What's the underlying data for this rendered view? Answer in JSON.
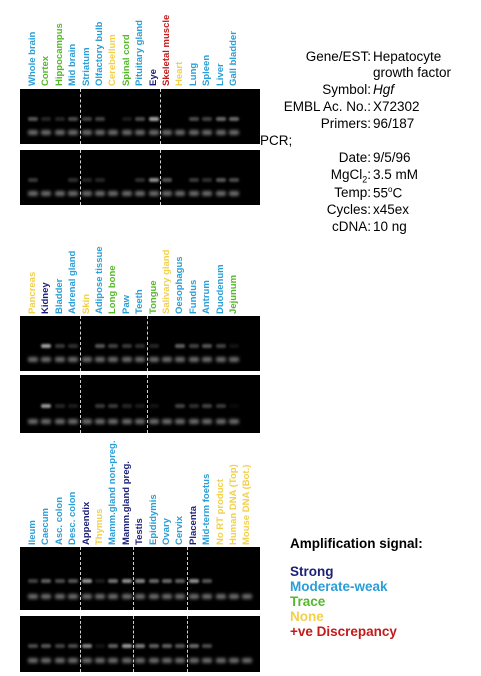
{
  "colors": {
    "strong": "#1c1f78",
    "moderate": "#2a9ed6",
    "trace": "#55b82b",
    "none": "#f2d04a",
    "discrepancy": "#c21b1b"
  },
  "panels": [
    {
      "lanes": [
        {
          "label": "Whole brain",
          "signal": "moderate",
          "b1": 0.45,
          "b2": 0.3
        },
        {
          "label": "Cortex",
          "signal": "trace",
          "b1": 0.2,
          "b2": 0
        },
        {
          "label": "Hippocampus",
          "signal": "trace",
          "b1": 0.2,
          "b2": 0
        },
        {
          "label": "Mid brain",
          "signal": "moderate",
          "b1": 0.4,
          "b2": 0.25
        },
        {
          "label": "Striatum",
          "signal": "moderate",
          "b1": 0.35,
          "b2": 0.2
        },
        {
          "label": "Olfactory bulb",
          "signal": "moderate",
          "b1": 0.35,
          "b2": 0.2
        },
        {
          "label": "Cerebellum",
          "signal": "none",
          "b1": 0,
          "b2": 0
        },
        {
          "label": "Spinal cord",
          "signal": "trace",
          "b1": 0.15,
          "b2": 0
        },
        {
          "label": "Pituitary gland",
          "signal": "moderate",
          "b1": 0.4,
          "b2": 0.25
        },
        {
          "label": "Eye",
          "signal": "strong",
          "b1": 0.85,
          "b2": 0.75
        },
        {
          "label": "Skeletal muscle",
          "signal": "discrepancy",
          "b1": 0,
          "b2": 0.45
        },
        {
          "label": "Heart",
          "signal": "none",
          "b1": 0,
          "b2": 0
        },
        {
          "label": "Lung",
          "signal": "moderate",
          "b1": 0.4,
          "b2": 0.3
        },
        {
          "label": "Spleen",
          "signal": "moderate",
          "b1": 0.35,
          "b2": 0.25
        },
        {
          "label": "Liver",
          "signal": "moderate",
          "b1": 0.55,
          "b2": 0.45
        },
        {
          "label": "Gall bladder",
          "signal": "moderate",
          "b1": 0.55,
          "b2": 0.4
        }
      ],
      "dividers": [
        4,
        10
      ]
    },
    {
      "lanes": [
        {
          "label": "Pancreas",
          "signal": "none",
          "b1": 0,
          "b2": 0
        },
        {
          "label": "Kidney",
          "signal": "strong",
          "b1": 0.85,
          "b2": 0.8
        },
        {
          "label": "Bladder",
          "signal": "moderate",
          "b1": 0.3,
          "b2": 0.2
        },
        {
          "label": "Adrenal gland",
          "signal": "moderate",
          "b1": 0.25,
          "b2": 0.15
        },
        {
          "label": "Skin",
          "signal": "none",
          "b1": 0,
          "b2": 0
        },
        {
          "label": "Adipose tissue",
          "signal": "moderate",
          "b1": 0.45,
          "b2": 0.3
        },
        {
          "label": "Long bone",
          "signal": "trace",
          "b1": 0.35,
          "b2": 0.3
        },
        {
          "label": "Paw",
          "signal": "moderate",
          "b1": 0.3,
          "b2": 0.2
        },
        {
          "label": "Teeth",
          "signal": "moderate",
          "b1": 0.25,
          "b2": 0.15
        },
        {
          "label": "Tongue",
          "signal": "trace",
          "b1": 0.2,
          "b2": 0.1
        },
        {
          "label": "Salivary gland",
          "signal": "none",
          "b1": 0,
          "b2": 0
        },
        {
          "label": "Oesophagus",
          "signal": "moderate",
          "b1": 0.5,
          "b2": 0.35
        },
        {
          "label": "Fundus",
          "signal": "moderate",
          "b1": 0.35,
          "b2": 0.25
        },
        {
          "label": "Antrum",
          "signal": "moderate",
          "b1": 0.45,
          "b2": 0.35
        },
        {
          "label": "Duodenum",
          "signal": "moderate",
          "b1": 0.35,
          "b2": 0.3
        },
        {
          "label": "Jejunum",
          "signal": "trace",
          "b1": 0.1,
          "b2": 0.05
        }
      ],
      "dividers": [
        4,
        9
      ]
    },
    {
      "lanes": [
        {
          "label": "Ileum",
          "signal": "moderate",
          "b1": 0.35,
          "b2": 0.4
        },
        {
          "label": "Caecum",
          "signal": "moderate",
          "b1": 0.5,
          "b2": 0.45
        },
        {
          "label": "Asc. colon",
          "signal": "moderate",
          "b1": 0.4,
          "b2": 0.35
        },
        {
          "label": "Desc. colon",
          "signal": "moderate",
          "b1": 0.45,
          "b2": 0.4
        },
        {
          "label": "Appendix",
          "signal": "strong",
          "b1": 0.8,
          "b2": 0.7
        },
        {
          "label": "Thymus",
          "signal": "none",
          "b1": 0.15,
          "b2": 0.1
        },
        {
          "label": "Mamm.gland non-preg.",
          "signal": "moderate",
          "b1": 0.6,
          "b2": 0.5
        },
        {
          "label": "Mamm.gland preg.",
          "signal": "strong",
          "b1": 0.75,
          "b2": 0.8
        },
        {
          "label": "Testis",
          "signal": "strong",
          "b1": 0.7,
          "b2": 0.65
        },
        {
          "label": "Epididymis",
          "signal": "moderate",
          "b1": 0.55,
          "b2": 0.5
        },
        {
          "label": "Ovary",
          "signal": "moderate",
          "b1": 0.55,
          "b2": 0.5
        },
        {
          "label": "Cervix",
          "signal": "moderate",
          "b1": 0.5,
          "b2": 0.45
        },
        {
          "label": "Placenta",
          "signal": "strong",
          "b1": 0.75,
          "b2": 0.55
        },
        {
          "label": "Mid-term foetus",
          "signal": "moderate",
          "b1": 0.45,
          "b2": 0.4
        },
        {
          "label": "No RT product",
          "signal": "none",
          "b1": 0,
          "b2": 0
        },
        {
          "label": "Human DNA (Top)",
          "signal": "none",
          "b1": 0,
          "b2": 0
        },
        {
          "label": "Mouse DNA (Bot.)",
          "signal": "none",
          "b1": 0,
          "b2": 0
        }
      ],
      "dividers": [
        4,
        8,
        12
      ]
    }
  ],
  "info": {
    "gene_key": "Gene/EST:",
    "gene_val": "Hepatocyte growth factor",
    "symbol_key": "Symbol:",
    "symbol_val": "Hgf",
    "embl_key": "EMBL Ac. No.:",
    "embl_val": "X72302",
    "primers_key": "Primers:",
    "primers_val": "96/187",
    "pcr_label": "PCR;",
    "date_key": "Date:",
    "date_val": "9/5/96",
    "mgcl_key": "MgCl",
    "mgcl_sub": "2",
    "mgcl_colon": ":",
    "mgcl_val": "3.5 mM",
    "temp_key": "Temp:",
    "temp_num": "55",
    "temp_sup": "o",
    "temp_unit": "C",
    "cycles_key": "Cycles:",
    "cycles_val": "x45ex",
    "cdna_key": "cDNA:",
    "cdna_val": "10 ng"
  },
  "legend": {
    "title": "Amplification signal:",
    "strong": "Strong",
    "moderate": "Moderate-weak",
    "trace": "Trace",
    "none": "None",
    "discrepancy": "+ve Discrepancy"
  }
}
